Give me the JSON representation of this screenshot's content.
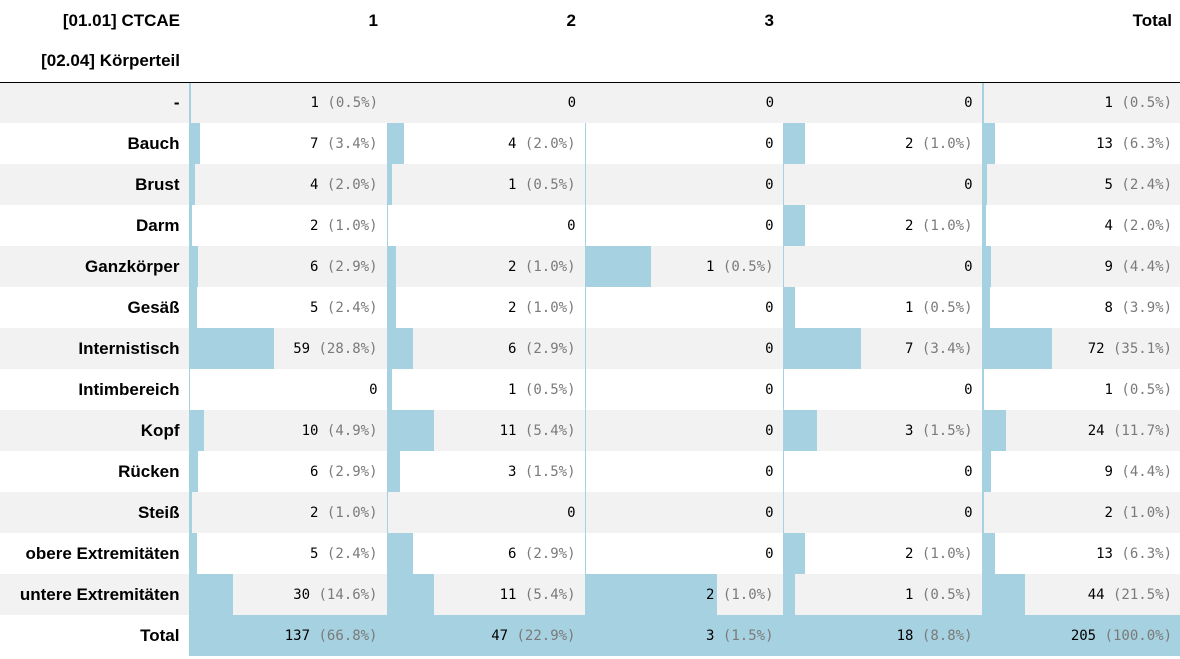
{
  "header": {
    "row_var": "[01.01] CTCAE",
    "col_var": "[02.04] Körperteil",
    "columns": [
      "1",
      "2",
      "3",
      "",
      "Total"
    ]
  },
  "rows": [
    {
      "label": "-",
      "cells": [
        {
          "n": "1",
          "pct": "(0.5%)",
          "frac": 0.007
        },
        {
          "n": "0",
          "pct": "",
          "frac": 0
        },
        {
          "n": "0",
          "pct": "",
          "frac": 0
        },
        {
          "n": "0",
          "pct": "",
          "frac": 0
        },
        {
          "n": "1",
          "pct": "(0.5%)",
          "frac": 0.005
        }
      ]
    },
    {
      "label": "Bauch",
      "cells": [
        {
          "n": "7",
          "pct": "(3.4%)",
          "frac": 0.051
        },
        {
          "n": "4",
          "pct": "(2.0%)",
          "frac": 0.085
        },
        {
          "n": "0",
          "pct": "",
          "frac": 0
        },
        {
          "n": "2",
          "pct": "(1.0%)",
          "frac": 0.111
        },
        {
          "n": "13",
          "pct": "(6.3%)",
          "frac": 0.063
        }
      ]
    },
    {
      "label": "Brust",
      "cells": [
        {
          "n": "4",
          "pct": "(2.0%)",
          "frac": 0.029
        },
        {
          "n": "1",
          "pct": "(0.5%)",
          "frac": 0.021
        },
        {
          "n": "0",
          "pct": "",
          "frac": 0
        },
        {
          "n": "0",
          "pct": "",
          "frac": 0
        },
        {
          "n": "5",
          "pct": "(2.4%)",
          "frac": 0.024
        }
      ]
    },
    {
      "label": "Darm",
      "cells": [
        {
          "n": "2",
          "pct": "(1.0%)",
          "frac": 0.015
        },
        {
          "n": "0",
          "pct": "",
          "frac": 0
        },
        {
          "n": "0",
          "pct": "",
          "frac": 0
        },
        {
          "n": "2",
          "pct": "(1.0%)",
          "frac": 0.111
        },
        {
          "n": "4",
          "pct": "(2.0%)",
          "frac": 0.02
        }
      ]
    },
    {
      "label": "Ganzkörper",
      "cells": [
        {
          "n": "6",
          "pct": "(2.9%)",
          "frac": 0.044
        },
        {
          "n": "2",
          "pct": "(1.0%)",
          "frac": 0.043
        },
        {
          "n": "1",
          "pct": "(0.5%)",
          "frac": 0.333
        },
        {
          "n": "0",
          "pct": "",
          "frac": 0
        },
        {
          "n": "9",
          "pct": "(4.4%)",
          "frac": 0.044
        }
      ]
    },
    {
      "label": "Gesäß",
      "cells": [
        {
          "n": "5",
          "pct": "(2.4%)",
          "frac": 0.036
        },
        {
          "n": "2",
          "pct": "(1.0%)",
          "frac": 0.043
        },
        {
          "n": "0",
          "pct": "",
          "frac": 0
        },
        {
          "n": "1",
          "pct": "(0.5%)",
          "frac": 0.056
        },
        {
          "n": "8",
          "pct": "(3.9%)",
          "frac": 0.039
        }
      ]
    },
    {
      "label": "Internistisch",
      "cells": [
        {
          "n": "59",
          "pct": "(28.8%)",
          "frac": 0.431
        },
        {
          "n": "6",
          "pct": "(2.9%)",
          "frac": 0.128
        },
        {
          "n": "0",
          "pct": "",
          "frac": 0
        },
        {
          "n": "7",
          "pct": "(3.4%)",
          "frac": 0.389
        },
        {
          "n": "72",
          "pct": "(35.1%)",
          "frac": 0.351
        }
      ]
    },
    {
      "label": "Intimbereich",
      "cells": [
        {
          "n": "0",
          "pct": "",
          "frac": 0
        },
        {
          "n": "1",
          "pct": "(0.5%)",
          "frac": 0.021
        },
        {
          "n": "0",
          "pct": "",
          "frac": 0
        },
        {
          "n": "0",
          "pct": "",
          "frac": 0
        },
        {
          "n": "1",
          "pct": "(0.5%)",
          "frac": 0.005
        }
      ]
    },
    {
      "label": "Kopf",
      "cells": [
        {
          "n": "10",
          "pct": "(4.9%)",
          "frac": 0.073
        },
        {
          "n": "11",
          "pct": "(5.4%)",
          "frac": 0.234
        },
        {
          "n": "0",
          "pct": "",
          "frac": 0
        },
        {
          "n": "3",
          "pct": "(1.5%)",
          "frac": 0.167
        },
        {
          "n": "24",
          "pct": "(11.7%)",
          "frac": 0.117
        }
      ]
    },
    {
      "label": "Rücken",
      "cells": [
        {
          "n": "6",
          "pct": "(2.9%)",
          "frac": 0.044
        },
        {
          "n": "3",
          "pct": "(1.5%)",
          "frac": 0.064
        },
        {
          "n": "0",
          "pct": "",
          "frac": 0
        },
        {
          "n": "0",
          "pct": "",
          "frac": 0
        },
        {
          "n": "9",
          "pct": "(4.4%)",
          "frac": 0.044
        }
      ]
    },
    {
      "label": "Steiß",
      "cells": [
        {
          "n": "2",
          "pct": "(1.0%)",
          "frac": 0.015
        },
        {
          "n": "0",
          "pct": "",
          "frac": 0
        },
        {
          "n": "0",
          "pct": "",
          "frac": 0
        },
        {
          "n": "0",
          "pct": "",
          "frac": 0
        },
        {
          "n": "2",
          "pct": "(1.0%)",
          "frac": 0.01
        }
      ]
    },
    {
      "label": "obere Extremitäten",
      "cells": [
        {
          "n": "5",
          "pct": "(2.4%)",
          "frac": 0.036
        },
        {
          "n": "6",
          "pct": "(2.9%)",
          "frac": 0.128
        },
        {
          "n": "0",
          "pct": "",
          "frac": 0
        },
        {
          "n": "2",
          "pct": "(1.0%)",
          "frac": 0.111
        },
        {
          "n": "13",
          "pct": "(6.3%)",
          "frac": 0.063
        }
      ]
    },
    {
      "label": "untere Extremitäten",
      "cells": [
        {
          "n": "30",
          "pct": "(14.6%)",
          "frac": 0.219
        },
        {
          "n": "11",
          "pct": "(5.4%)",
          "frac": 0.234
        },
        {
          "n": "2",
          "pct": "(1.0%)",
          "frac": 0.667
        },
        {
          "n": "1",
          "pct": "(0.5%)",
          "frac": 0.056
        },
        {
          "n": "44",
          "pct": "(21.5%)",
          "frac": 0.215
        }
      ]
    },
    {
      "label": "Total",
      "cells": [
        {
          "n": "137",
          "pct": "(66.8%)",
          "frac": 1
        },
        {
          "n": "47",
          "pct": "(22.9%)",
          "frac": 1
        },
        {
          "n": "3",
          "pct": "(1.5%)",
          "frac": 1
        },
        {
          "n": "18",
          "pct": "(8.8%)",
          "frac": 1
        },
        {
          "n": "205",
          "pct": "(100.0%)",
          "frac": 1
        }
      ]
    }
  ],
  "colors": {
    "bar": "#a6d1e0",
    "alt_row": "#f2f2f2",
    "pct_text": "#7a7a7a"
  }
}
